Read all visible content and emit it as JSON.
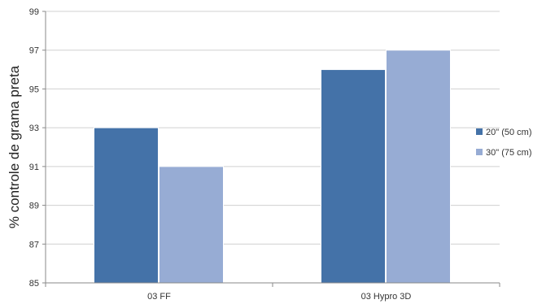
{
  "chart_data": {
    "type": "bar",
    "title": "",
    "xlabel": "",
    "ylabel": "% controle de grama preta",
    "categories": [
      "03 FF",
      "03 Hypro 3D"
    ],
    "series": [
      {
        "name": "20\" (50 cm)",
        "values": [
          93,
          96
        ],
        "color": "#4472a8"
      },
      {
        "name": "30\" (75 cm)",
        "values": [
          91,
          97
        ],
        "color": "#97acd4"
      }
    ],
    "ylim": [
      85,
      99
    ],
    "yticks": [
      85,
      87,
      89,
      91,
      93,
      95,
      97,
      99
    ],
    "grid": true,
    "legend_position": "right"
  }
}
